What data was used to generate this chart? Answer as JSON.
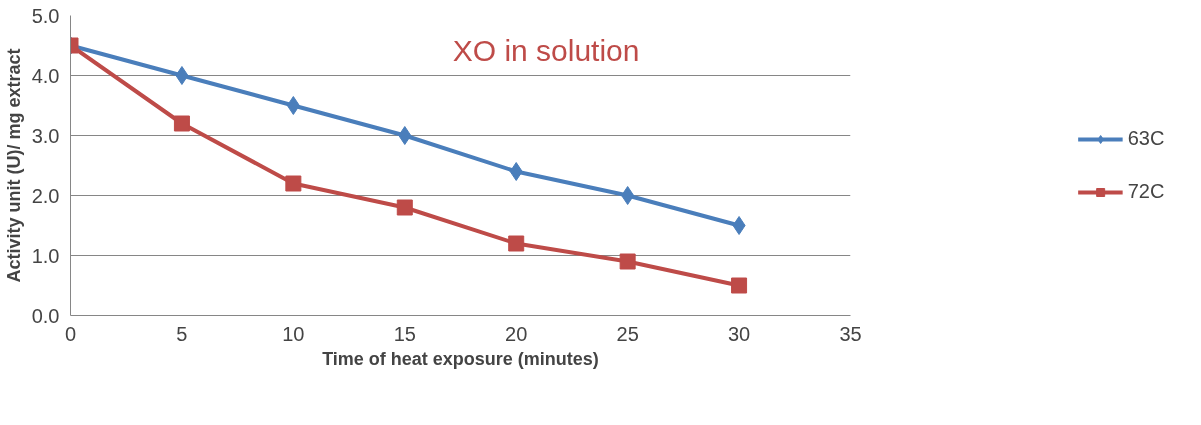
{
  "chart_data": {
    "type": "line",
    "xlabel": "Time of heat exposure (minutes)",
    "ylabel": "Activity unit (U)/ mg extract",
    "x": [
      0,
      5,
      10,
      15,
      20,
      25,
      30
    ],
    "series": [
      {
        "name": "63C",
        "color": "#4a7ebb",
        "marker": "diamond",
        "values": [
          4.5,
          4.0,
          3.5,
          3.0,
          2.4,
          2.0,
          1.5
        ]
      },
      {
        "name": "72C",
        "color": "#be4b48",
        "marker": "square",
        "values": [
          4.5,
          3.2,
          2.2,
          1.8,
          1.2,
          0.9,
          0.5
        ]
      }
    ],
    "annotations": [
      "XO in solution"
    ],
    "xlim": [
      0,
      35
    ],
    "xticks": [
      0,
      5,
      10,
      15,
      20,
      25,
      30,
      35
    ],
    "ylim": [
      0,
      5
    ],
    "yticks": [
      {
        "value": 0,
        "label": "0.0"
      },
      {
        "value": 1,
        "label": "1.0"
      },
      {
        "value": 2,
        "label": "2.0"
      },
      {
        "value": 3,
        "label": "3.0"
      },
      {
        "value": 4,
        "label": "4.0"
      },
      {
        "value": 5,
        "label": "5.0"
      }
    ],
    "grid": "y",
    "legend": "right"
  }
}
